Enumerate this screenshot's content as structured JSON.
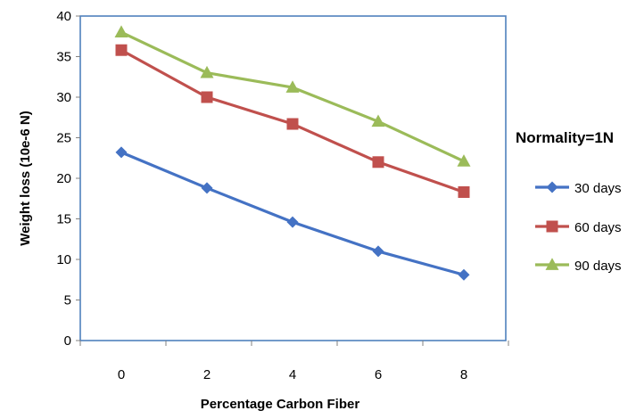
{
  "chart_data": {
    "type": "line",
    "xlabel": "Percentage Carbon Fiber",
    "ylabel": "Weight loss  (10e-6 N)",
    "x": [
      0,
      2,
      4,
      6,
      8
    ],
    "x_tick_labels": [
      "0",
      "2",
      "4",
      "6",
      "8"
    ],
    "ylim": [
      0,
      40
    ],
    "y_tick_labels": [
      "0",
      "5",
      "10",
      "15",
      "20",
      "25",
      "30",
      "35",
      "40"
    ],
    "grid": false,
    "legend_position": "right",
    "legend_title": "Normality=1N",
    "series": [
      {
        "name": "30 days",
        "values": [
          23.2,
          18.8,
          14.6,
          11.0,
          8.1
        ],
        "color": "#4472C4",
        "marker": "diamond"
      },
      {
        "name": "60 days",
        "values": [
          35.8,
          30.0,
          26.7,
          22.0,
          18.3
        ],
        "color": "#C0504D",
        "marker": "square"
      },
      {
        "name": "90 days",
        "values": [
          38.0,
          33.0,
          31.2,
          27.0,
          22.1
        ],
        "color": "#9BBB59",
        "marker": "triangle"
      }
    ]
  }
}
